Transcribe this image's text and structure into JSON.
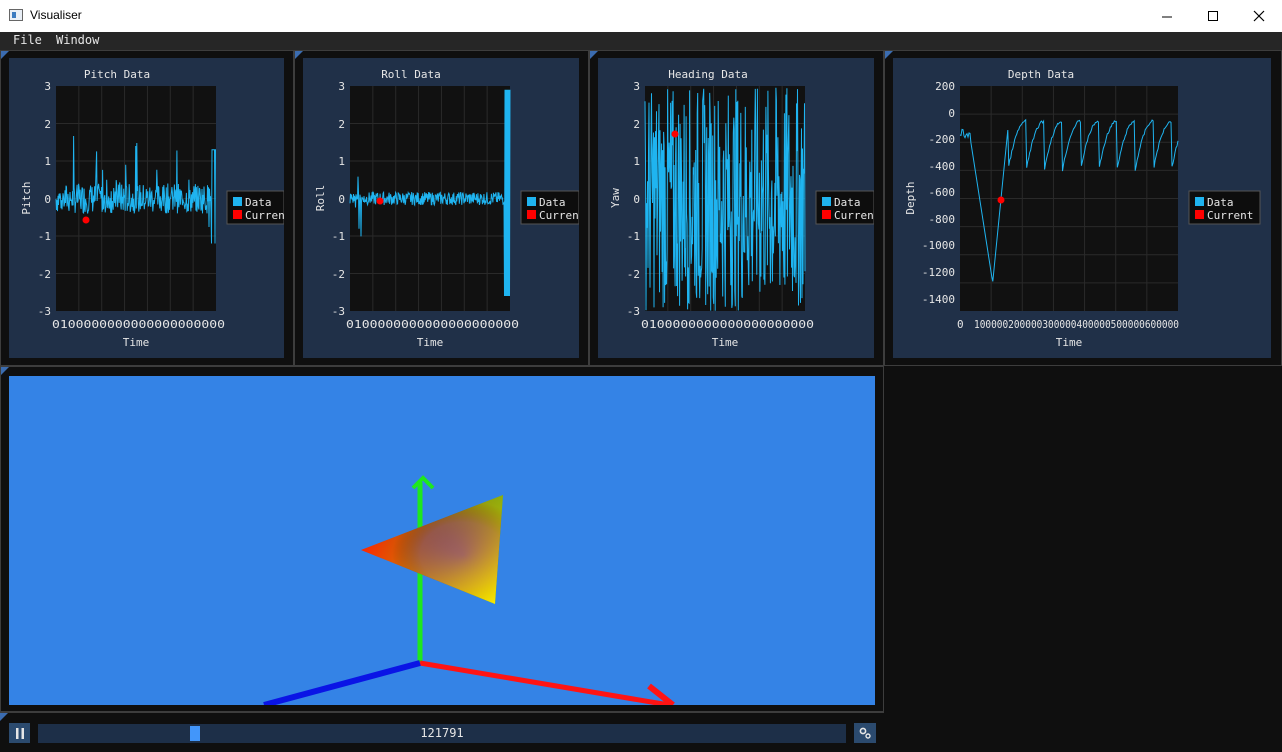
{
  "window": {
    "title": "Visualiser"
  },
  "menu": [
    {
      "label": "File"
    },
    {
      "label": "Window"
    }
  ],
  "plots": [
    {
      "title": "Pitch Data",
      "xlabel": "Time",
      "ylabel": "Pitch",
      "yticks": [
        "3",
        "2",
        "1",
        "0",
        "-1",
        "-2",
        "-3"
      ],
      "xtick_label": "0100000000000000000000",
      "legend": [
        "Data",
        "Current"
      ],
      "legend_label_data": "Data",
      "legend_label_current": "Current"
    },
    {
      "title": "Roll Data",
      "xlabel": "Time",
      "ylabel": "Roll",
      "yticks": [
        "3",
        "2",
        "1",
        "0",
        "-1",
        "-2",
        "-3"
      ],
      "xtick_label": "0100000000000000000000",
      "legend": [
        "Data",
        "Current"
      ],
      "legend_label_data": "Data",
      "legend_label_current": "Current"
    },
    {
      "title": "Heading Data",
      "xlabel": "Time",
      "ylabel": "Yaw",
      "yticks": [
        "3",
        "2",
        "1",
        "0",
        "-1",
        "-2",
        "-3"
      ],
      "xtick_label": "0100000000000000000000",
      "legend": [
        "Data",
        "Current"
      ],
      "legend_label_data": "Data",
      "legend_label_current": "Current"
    },
    {
      "title": "Depth Data",
      "xlabel": "Time",
      "ylabel": "Depth",
      "yticks": [
        "200",
        "0",
        "-200",
        "-400",
        "-600",
        "-800",
        "-1000",
        "-1200",
        "-1400"
      ],
      "xtick_first": "0",
      "xtick_label": "100000200000300000400000500000600000",
      "legend": [
        "Data",
        "Current"
      ],
      "legend_label_data": "Data",
      "legend_label_current": "Current"
    }
  ],
  "colors": {
    "data": "#1fb4f0",
    "current": "#ff0000",
    "viewport": "#3483e6"
  },
  "playback": {
    "frame": "121791",
    "progress": 0.19
  },
  "icons": {
    "pause": "pause-icon",
    "settings": "gear-icon"
  }
}
